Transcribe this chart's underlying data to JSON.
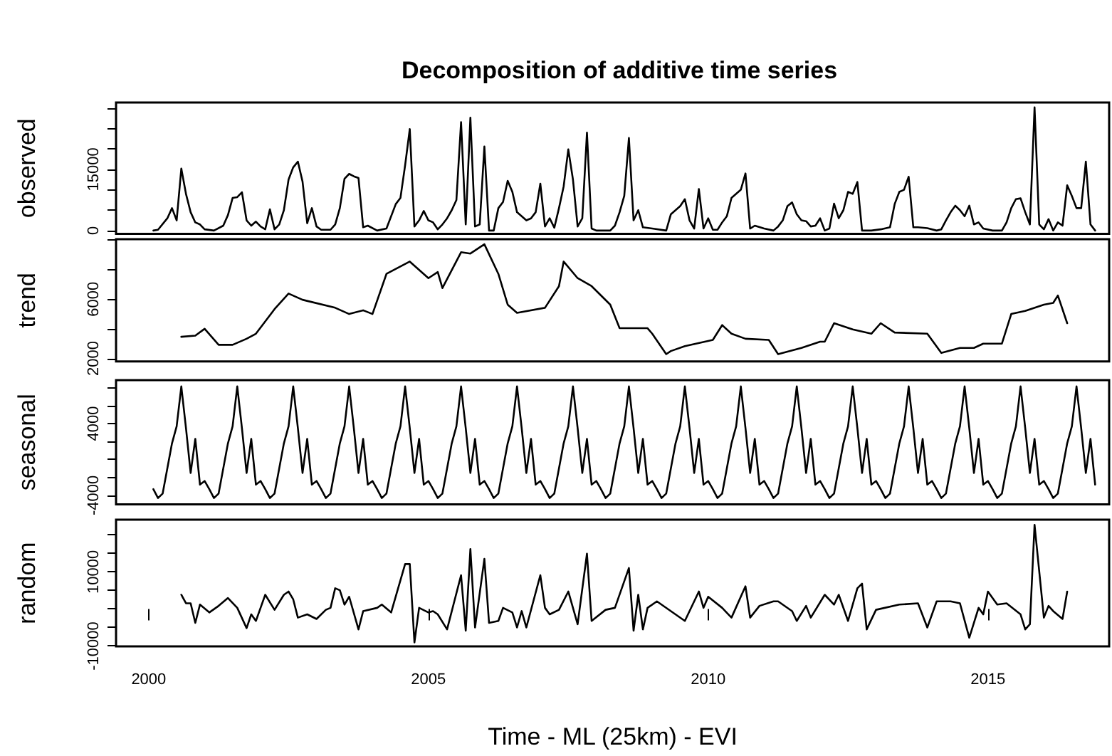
{
  "chart_data": [
    {
      "type": "line",
      "title": "Decomposition of additive time series",
      "ylabel": "observed",
      "tick_labels": "y",
      "marker": "none",
      "line_style": "solid",
      "xlim": [
        "1999-06",
        "2017-03"
      ],
      "ylim": [
        -800,
        31400
      ],
      "yticks": [
        0,
        {
          "value": 5000,
          "label": null
        },
        {
          "value": 10000,
          "label": null
        },
        15000,
        {
          "value": 20000,
          "label": null
        },
        {
          "value": 25000,
          "label": null
        },
        {
          "value": 30000,
          "label": null
        }
      ],
      "series": [
        {
          "color": "#000000",
          "x": [
            "2000-02",
            "2000-03",
            "2000-05",
            "2000-06",
            "2000-07",
            "2000-08",
            "2000-09",
            "2000-10",
            "2000-11",
            "2000-12",
            "2001-01",
            "2001-03",
            "2001-05",
            "2001-06",
            "2001-07",
            "2001-08",
            "2001-09",
            "2001-10",
            "2001-11",
            "2001-12",
            "2002-01",
            "2002-02",
            "2002-03",
            "2002-04",
            "2002-05",
            "2002-06",
            "2002-07",
            "2002-08",
            "2002-09",
            "2002-10",
            "2002-11",
            "2002-12",
            "2003-01",
            "2003-02",
            "2003-04",
            "2003-05",
            "2003-06",
            "2003-07",
            "2003-08",
            "2003-09",
            "2003-10",
            "2003-11",
            "2003-12",
            "2004-02",
            "2004-04",
            "2004-06",
            "2004-07",
            "2004-08",
            "2004-09",
            "2004-10",
            "2004-11",
            "2004-12",
            "2005-01",
            "2005-02",
            "2005-03",
            "2005-04",
            "2005-05",
            "2005-06",
            "2005-07",
            "2005-08",
            "2005-09",
            "2005-10",
            "2005-11",
            "2005-12",
            "2006-01",
            "2006-02",
            "2006-03",
            "2006-04",
            "2006-05",
            "2006-06",
            "2006-07",
            "2006-08",
            "2006-09",
            "2006-10",
            "2006-11",
            "2006-12",
            "2007-01",
            "2007-02",
            "2007-03",
            "2007-04",
            "2007-05",
            "2007-06",
            "2007-07",
            "2007-08",
            "2007-09",
            "2007-10",
            "2007-11",
            "2007-12",
            "2008-01",
            "2008-04",
            "2008-05",
            "2008-06",
            "2008-07",
            "2008-08",
            "2008-09",
            "2008-10",
            "2008-11",
            "2009-01",
            "2009-04",
            "2009-05",
            "2009-06",
            "2009-07",
            "2009-08",
            "2009-09",
            "2009-10",
            "2009-11",
            "2009-12",
            "2010-01",
            "2010-02",
            "2010-03",
            "2010-04",
            "2010-05",
            "2010-06",
            "2010-07",
            "2010-08",
            "2010-09",
            "2010-10",
            "2010-11",
            "2011-01",
            "2011-03",
            "2011-04",
            "2011-05",
            "2011-06",
            "2011-07",
            "2011-08",
            "2011-09",
            "2011-10",
            "2011-11",
            "2011-12",
            "2012-01",
            "2012-02",
            "2012-03",
            "2012-04",
            "2012-05",
            "2012-06",
            "2012-07",
            "2012-08",
            "2012-09",
            "2012-10",
            "2012-12",
            "2013-02",
            "2013-04",
            "2013-05",
            "2013-06",
            "2013-07",
            "2013-08",
            "2013-09",
            "2013-10",
            "2013-12",
            "2014-02",
            "2014-03",
            "2014-04",
            "2014-05",
            "2014-06",
            "2014-07",
            "2014-08",
            "2014-09",
            "2014-10",
            "2014-11",
            "2014-12",
            "2015-02",
            "2015-04",
            "2015-05",
            "2015-06",
            "2015-07",
            "2015-08",
            "2015-09",
            "2015-10",
            "2015-11",
            "2015-12",
            "2016-01",
            "2016-02",
            "2016-03",
            "2016-04",
            "2016-05",
            "2016-06",
            "2016-07",
            "2016-08",
            "2016-09",
            "2016-10",
            "2016-11",
            "2016-12"
          ],
          "values": [
            0,
            200,
            3000,
            5500,
            2500,
            15200,
            9000,
            4500,
            2000,
            1500,
            300,
            0,
            1200,
            3800,
            8000,
            8200,
            9400,
            2500,
            1200,
            2200,
            1000,
            300,
            5200,
            300,
            1500,
            5000,
            12500,
            15500,
            16900,
            12000,
            1800,
            5500,
            1000,
            200,
            200,
            1500,
            5500,
            12700,
            13900,
            13300,
            12900,
            800,
            1200,
            0,
            500,
            6500,
            8000,
            16000,
            24900,
            1000,
            2500,
            4800,
            2500,
            2000,
            300,
            1500,
            3000,
            5000,
            7500,
            26600,
            1500,
            27700,
            1000,
            1500,
            20600,
            0,
            0,
            5500,
            7000,
            12200,
            9500,
            4500,
            3500,
            2500,
            3000,
            4500,
            11500,
            1000,
            3000,
            700,
            5500,
            10800,
            19900,
            12500,
            1000,
            3000,
            24000,
            500,
            0,
            0,
            1200,
            4500,
            8500,
            22700,
            2500,
            5000,
            800,
            500,
            0,
            4000,
            5000,
            6000,
            7700,
            2500,
            500,
            10200,
            500,
            3000,
            200,
            200,
            2000,
            3500,
            8000,
            9000,
            10000,
            14000,
            500,
            1200,
            500,
            0,
            1000,
            2500,
            6000,
            6900,
            4000,
            2500,
            2300,
            1000,
            1200,
            3000,
            0,
            500,
            6600,
            3000,
            5000,
            9500,
            9000,
            11900,
            0,
            0,
            300,
            800,
            6500,
            9500,
            10000,
            13200,
            800,
            800,
            600,
            0,
            300,
            2500,
            4500,
            6100,
            5000,
            3500,
            6100,
            1500,
            2000,
            500,
            0,
            0,
            2000,
            5500,
            7700,
            7900,
            4500,
            1500,
            30200,
            1500,
            300,
            2800,
            0,
            2000,
            1200,
            11100,
            8500,
            5500,
            5500,
            16900,
            1500,
            0
          ]
        }
      ]
    },
    {
      "type": "line",
      "ylabel": "trend",
      "tick_labels": "y",
      "marker": "none",
      "line_style": "solid",
      "xlim": [
        "1999-06",
        "2017-03"
      ],
      "ylim": [
        1800,
        10050
      ],
      "yticks": [
        2000,
        {
          "value": 4000,
          "label": null
        },
        6000,
        {
          "value": 8000,
          "label": null
        },
        {
          "value": 10000,
          "label": null
        }
      ],
      "series": [
        {
          "color": "#000000",
          "x": [
            "2000-08",
            "2000-11",
            "2001-01",
            "2001-04",
            "2001-07",
            "2001-10",
            "2001-12",
            "2002-04",
            "2002-07",
            "2002-10",
            "2003-05",
            "2003-08",
            "2003-11",
            "2004-01",
            "2004-04",
            "2004-09",
            "2005-01",
            "2005-03",
            "2005-04",
            "2005-08",
            "2005-10",
            "2006-01",
            "2006-04",
            "2006-06",
            "2006-08",
            "2007-02",
            "2007-05",
            "2007-06",
            "2007-09",
            "2007-12",
            "2008-04",
            "2008-06",
            "2008-12",
            "2009-01",
            "2009-04",
            "2009-05",
            "2009-08",
            "2010-02",
            "2010-04",
            "2010-06",
            "2010-09",
            "2011-02",
            "2011-04",
            "2011-09",
            "2012-01",
            "2012-02",
            "2012-04",
            "2012-08",
            "2012-12",
            "2013-02",
            "2013-05",
            "2013-12",
            "2014-03",
            "2014-07",
            "2014-10",
            "2014-12",
            "2015-04",
            "2015-06",
            "2015-09",
            "2016-01",
            "2016-03",
            "2016-04",
            "2016-06"
          ],
          "values": [
            3460,
            3540,
            4000,
            2920,
            2920,
            3330,
            3670,
            5330,
            6380,
            5960,
            5420,
            5000,
            5250,
            5000,
            7710,
            8540,
            7420,
            7830,
            6750,
            9170,
            9080,
            9710,
            7710,
            5630,
            5080,
            5420,
            6880,
            8540,
            7420,
            6880,
            5630,
            4040,
            4040,
            3670,
            2290,
            2500,
            2830,
            3250,
            4250,
            3670,
            3330,
            3250,
            2290,
            2710,
            3130,
            3130,
            4380,
            3960,
            3670,
            4380,
            3750,
            3670,
            2370,
            2710,
            2710,
            3000,
            3000,
            5000,
            5210,
            5630,
            5750,
            6250,
            4380
          ]
        }
      ]
    },
    {
      "type": "line",
      "ylabel": "seasonal",
      "tick_labels": "y",
      "marker": "none",
      "line_style": "solid",
      "xlim": [
        "1999-06",
        "2017-03"
      ],
      "ylim": [
        -5000,
        8850
      ],
      "yticks": [
        -4000,
        {
          "value": -2000,
          "label": null
        },
        {
          "value": 0,
          "label": null
        },
        {
          "value": 2000,
          "label": null
        },
        4000,
        {
          "value": 6000,
          "label": null
        },
        {
          "value": 8000,
          "label": null
        }
      ],
      "series": [
        {
          "color": "#000000",
          "x": [
            "2000-02",
            "2000-03",
            "2000-04",
            "2000-05",
            "2000-06",
            "2000-07",
            "2000-08",
            "2000-09",
            "2000-10",
            "2000-11",
            "2000-12",
            "2001-01",
            "2001-02",
            "2001-03",
            "2001-04",
            "2001-05",
            "2001-06",
            "2001-07",
            "2001-08",
            "2001-09",
            "2001-10",
            "2001-11",
            "2001-12",
            "2002-01",
            "2002-02",
            "2002-03",
            "2002-04",
            "2002-05",
            "2002-06",
            "2002-07",
            "2002-08",
            "2002-09",
            "2002-10",
            "2002-11",
            "2002-12",
            "2003-01",
            "2003-02",
            "2003-03",
            "2003-04",
            "2003-05",
            "2003-06",
            "2003-07",
            "2003-08",
            "2003-09",
            "2003-10",
            "2003-11",
            "2003-12",
            "2004-01",
            "2004-02",
            "2004-03",
            "2004-04",
            "2004-05",
            "2004-06",
            "2004-07",
            "2004-08",
            "2004-09",
            "2004-10",
            "2004-11",
            "2004-12",
            "2005-01",
            "2005-02",
            "2005-03",
            "2005-04",
            "2005-05",
            "2005-06",
            "2005-07",
            "2005-08",
            "2005-09",
            "2005-10",
            "2005-11",
            "2005-12",
            "2006-01",
            "2006-02",
            "2006-03",
            "2006-04",
            "2006-05",
            "2006-06",
            "2006-07",
            "2006-08",
            "2006-09",
            "2006-10",
            "2006-11",
            "2006-12",
            "2007-01",
            "2007-02",
            "2007-03",
            "2007-04",
            "2007-05",
            "2007-06",
            "2007-07",
            "2007-08",
            "2007-09",
            "2007-10",
            "2007-11",
            "2007-12",
            "2008-01",
            "2008-02",
            "2008-03",
            "2008-04",
            "2008-05",
            "2008-06",
            "2008-07",
            "2008-08",
            "2008-09",
            "2008-10",
            "2008-11",
            "2008-12",
            "2009-01",
            "2009-02",
            "2009-03",
            "2009-04",
            "2009-05",
            "2009-06",
            "2009-07",
            "2009-08",
            "2009-09",
            "2009-10",
            "2009-11",
            "2009-12",
            "2010-01",
            "2010-02",
            "2010-03",
            "2010-04",
            "2010-05",
            "2010-06",
            "2010-07",
            "2010-08",
            "2010-09",
            "2010-10",
            "2010-11",
            "2010-12",
            "2011-01",
            "2011-02",
            "2011-03",
            "2011-04",
            "2011-05",
            "2011-06",
            "2011-07",
            "2011-08",
            "2011-09",
            "2011-10",
            "2011-11",
            "2011-12",
            "2012-01",
            "2012-02",
            "2012-03",
            "2012-04",
            "2012-05",
            "2012-06",
            "2012-07",
            "2012-08",
            "2012-09",
            "2012-10",
            "2012-11",
            "2012-12",
            "2013-01",
            "2013-02",
            "2013-03",
            "2013-04",
            "2013-05",
            "2013-06",
            "2013-07",
            "2013-08",
            "2013-09",
            "2013-10",
            "2013-11",
            "2013-12",
            "2014-01",
            "2014-02",
            "2014-03",
            "2014-04",
            "2014-05",
            "2014-06",
            "2014-07",
            "2014-08",
            "2014-09",
            "2014-10",
            "2014-11",
            "2014-12",
            "2015-01",
            "2015-02",
            "2015-03",
            "2015-04",
            "2015-05",
            "2015-06",
            "2015-07",
            "2015-08",
            "2015-09",
            "2015-10",
            "2015-11",
            "2015-12",
            "2016-01",
            "2016-02",
            "2016-03",
            "2016-04",
            "2016-05",
            "2016-06",
            "2016-07",
            "2016-08",
            "2016-09",
            "2016-10",
            "2016-11",
            "2016-12"
          ],
          "values": [
            -3300,
            -4300,
            -3800,
            -1000,
            1800,
            3700,
            8150,
            3500,
            -1500,
            2300,
            -2800,
            -2400,
            -3300,
            -4300,
            -3800,
            -1000,
            1800,
            3700,
            8150,
            3500,
            -1500,
            2300,
            -2800,
            -2400,
            -3300,
            -4300,
            -3800,
            -1000,
            1800,
            3700,
            8150,
            3500,
            -1500,
            2300,
            -2800,
            -2400,
            -3300,
            -4300,
            -3800,
            -1000,
            1800,
            3700,
            8150,
            3500,
            -1500,
            2300,
            -2800,
            -2400,
            -3300,
            -4300,
            -3800,
            -1000,
            1800,
            3700,
            8150,
            3500,
            -1500,
            2300,
            -2800,
            -2400,
            -3300,
            -4300,
            -3800,
            -1000,
            1800,
            3700,
            8150,
            3500,
            -1500,
            2300,
            -2800,
            -2400,
            -3300,
            -4300,
            -3800,
            -1000,
            1800,
            3700,
            8150,
            3500,
            -1500,
            2300,
            -2800,
            -2400,
            -3300,
            -4300,
            -3800,
            -1000,
            1800,
            3700,
            8150,
            3500,
            -1500,
            2300,
            -2800,
            -2400,
            -3300,
            -4300,
            -3800,
            -1000,
            1800,
            3700,
            8150,
            3500,
            -1500,
            2300,
            -2800,
            -2400,
            -3300,
            -4300,
            -3800,
            -1000,
            1800,
            3700,
            8150,
            3500,
            -1500,
            2300,
            -2800,
            -2400,
            -3300,
            -4300,
            -3800,
            -1000,
            1800,
            3700,
            8150,
            3500,
            -1500,
            2300,
            -2800,
            -2400,
            -3300,
            -4300,
            -3800,
            -1000,
            1800,
            3700,
            8150,
            3500,
            -1500,
            2300,
            -2800,
            -2400,
            -3300,
            -4300,
            -3800,
            -1000,
            1800,
            3700,
            8150,
            3500,
            -1500,
            2300,
            -2800,
            -2400,
            -3300,
            -4300,
            -3800,
            -1000,
            1800,
            3700,
            8150,
            3500,
            -1500,
            2300,
            -2800,
            -2400,
            -3300,
            -4300,
            -3800,
            -1000,
            1800,
            3700,
            8150,
            3500,
            -1500,
            2300,
            -2800,
            -2400,
            -3300,
            -4300,
            -3800,
            -1000,
            1800,
            3700,
            8150,
            3500,
            -1500,
            2300,
            -2800,
            -2400,
            -3300,
            -4300,
            -3800,
            -1000,
            1800,
            3700,
            8150,
            3500,
            -1500,
            2300,
            -2800
          ]
        }
      ]
    },
    {
      "type": "line",
      "ylabel": "random",
      "xlabel": "Time - ML (25km) - EVI",
      "marker": "none",
      "line_style": "solid",
      "xlim": [
        "1999-06",
        "2017-03"
      ],
      "ylim": [
        -10100,
        24100
      ],
      "xticks": [
        "2000",
        "2005",
        "2010",
        "2015"
      ],
      "yticks": [
        -10000,
        {
          "value": -5000,
          "label": null
        },
        {
          "value": 0,
          "label": null
        },
        {
          "value": 5000,
          "label": null
        },
        10000,
        {
          "value": 15000,
          "label": null
        },
        {
          "value": 20000,
          "label": null
        }
      ],
      "series": [
        {
          "color": "#000000",
          "x": [
            "2000-08",
            "2000-09",
            "2000-10",
            "2000-11",
            "2000-12",
            "2001-02",
            "2001-04",
            "2001-06",
            "2001-08",
            "2001-10",
            "2001-11",
            "2001-12",
            "2002-01",
            "2002-02",
            "2002-04",
            "2002-06",
            "2002-07",
            "2002-08",
            "2002-09",
            "2002-11",
            "2003-01",
            "2003-03",
            "2003-04",
            "2003-05",
            "2003-06",
            "2003-07",
            "2003-08",
            "2003-10",
            "2003-11",
            "2004-02",
            "2004-03",
            "2004-05",
            "2004-08",
            "2004-09",
            "2004-10",
            "2004-11",
            "2005-01",
            "2005-02",
            "2005-03",
            "2005-05",
            "2005-08",
            "2005-09",
            "2005-10",
            "2005-11",
            "2006-01",
            "2006-02",
            "2006-04",
            "2006-05",
            "2006-07",
            "2006-08",
            "2006-09",
            "2006-10",
            "2007-01",
            "2007-02",
            "2007-03",
            "2007-05",
            "2007-07",
            "2007-09",
            "2007-11",
            "2007-12",
            "2008-03",
            "2008-05",
            "2008-08",
            "2008-09",
            "2008-10",
            "2008-11",
            "2008-12",
            "2009-02",
            "2009-05",
            "2009-08",
            "2009-11",
            "2009-12",
            "2010-01",
            "2010-04",
            "2010-06",
            "2010-09",
            "2010-10",
            "2010-12",
            "2011-03",
            "2011-04",
            "2011-07",
            "2011-08",
            "2011-10",
            "2011-11",
            "2012-02",
            "2012-04",
            "2012-05",
            "2012-07",
            "2012-09",
            "2012-10",
            "2012-11",
            "2013-01",
            "2013-06",
            "2013-10",
            "2013-12",
            "2014-02",
            "2014-05",
            "2014-07",
            "2014-09",
            "2014-11",
            "2014-12",
            "2015-01",
            "2015-03",
            "2015-05",
            "2015-08",
            "2015-09",
            "2015-10",
            "2015-11",
            "2016-01",
            "2016-02",
            "2016-03",
            "2016-05",
            "2016-06"
          ],
          "values": [
            3830,
            1530,
            1530,
            -3760,
            1180,
            -940,
            830,
            2950,
            300,
            -5170,
            -1460,
            -3230,
            300,
            3830,
            -230,
            3830,
            4700,
            2590,
            -2340,
            -1460,
            -2700,
            -230,
            300,
            5590,
            5060,
            1180,
            3300,
            -5520,
            -580,
            300,
            1180,
            -940,
            12110,
            12110,
            -9050,
            300,
            -940,
            -580,
            -1460,
            -5520,
            9110,
            -5870,
            16160,
            -5000,
            13510,
            -3760,
            -3230,
            300,
            -940,
            -5000,
            -580,
            -5000,
            9110,
            300,
            -1460,
            -230,
            4700,
            -4110,
            14920,
            -3230,
            -230,
            300,
            11060,
            -5870,
            3830,
            -5520,
            300,
            2060,
            -580,
            -3230,
            4700,
            300,
            3300,
            300,
            -2340,
            6120,
            -2340,
            830,
            2060,
            2060,
            -580,
            -3230,
            830,
            -2340,
            3830,
            1180,
            3830,
            -3230,
            5590,
            6820,
            -5520,
            -230,
            1180,
            1530,
            -5000,
            2060,
            2060,
            1530,
            -7760,
            300,
            -1460,
            4700,
            1180,
            1530,
            -1460,
            -5520,
            -4110,
            22710,
            -2340,
            830,
            -580,
            -2700,
            4700
          ]
        }
      ]
    }
  ]
}
